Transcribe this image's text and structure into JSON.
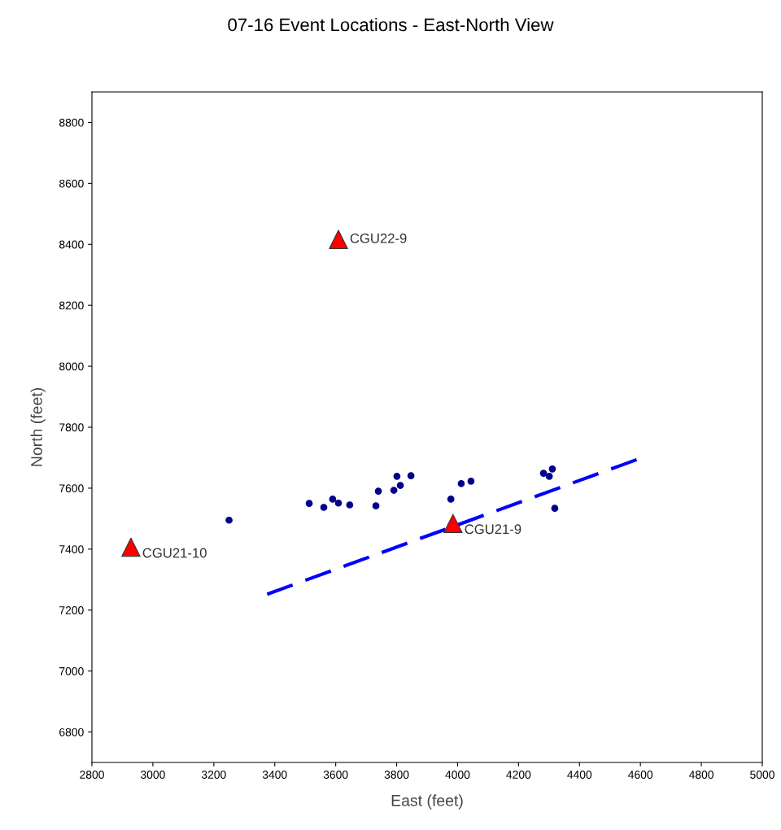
{
  "chart_data": {
    "type": "scatter",
    "title": "07-16 Event Locations - East-North View",
    "xlabel": "East (feet)",
    "ylabel": "North (feet)",
    "xlim": [
      2800,
      5000
    ],
    "xticks": [
      2800,
      3000,
      3200,
      3400,
      3600,
      3800,
      4000,
      4200,
      4400,
      4600,
      4800,
      5000
    ],
    "ylim": [
      6700,
      8900
    ],
    "yticks": [
      6800,
      7000,
      7200,
      7400,
      7600,
      7800,
      8000,
      8200,
      8400,
      8600,
      8800
    ],
    "grid": false,
    "legend": false,
    "series": [
      {
        "color": "#00008b",
        "marker": "circle",
        "x": [
          3250,
          3513,
          3561,
          3590,
          3609,
          3646,
          3732,
          3740,
          3791,
          3812,
          3801,
          3847,
          3978,
          4012,
          4044,
          4282,
          4301,
          4311,
          4319
        ],
        "values": [
          7495,
          7550,
          7537,
          7564,
          7551,
          7545,
          7542,
          7590,
          7593,
          7609,
          7639,
          7641,
          7564,
          7615,
          7623,
          7649,
          7639,
          7663,
          7534
        ]
      },
      {
        "color": "#ff0000",
        "marker": "triangle",
        "x": [
          3609,
          2928,
          3985
        ],
        "values": [
          8416,
          7406,
          7484
        ],
        "value_labels": [
          "CGU22-9",
          "CGU21-10",
          "CGU21-9"
        ]
      },
      {
        "type": "line",
        "color": "#0000ff",
        "line_style": "dashed",
        "marker": "none",
        "x": [
          3375,
          4600
        ],
        "values": [
          7252,
          7698
        ]
      }
    ]
  }
}
